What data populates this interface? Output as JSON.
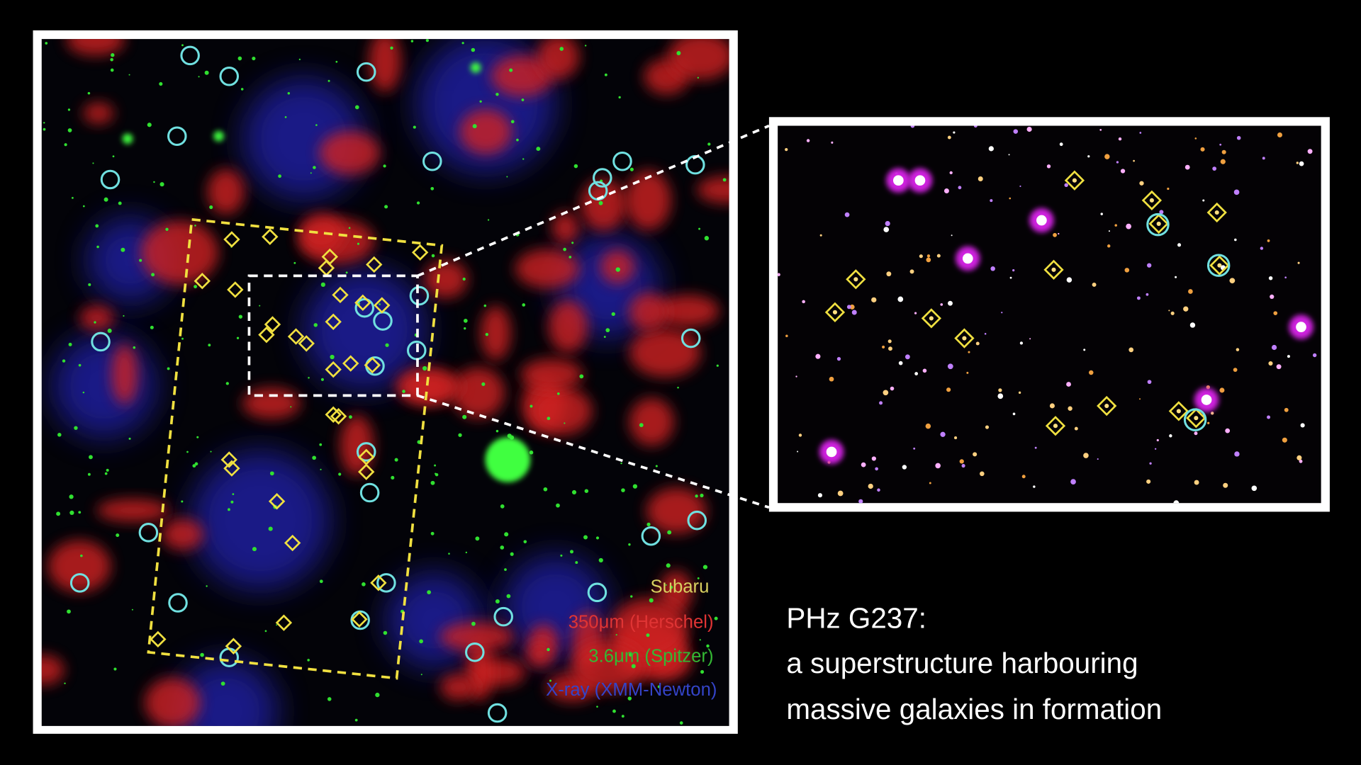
{
  "legend": {
    "subaru": "Subaru",
    "herschel": "350μm (Herschel)",
    "spitzer": "3.6μm (Spitzer)",
    "xray": "X-ray (XMM-Newton)"
  },
  "caption": {
    "title": "PHz G237:",
    "lines": [
      "a superstructure harbouring",
      "massive galaxies in formation"
    ]
  }
}
